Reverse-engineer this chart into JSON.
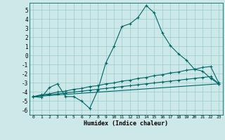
{
  "xlabel": "Humidex (Indice chaleur)",
  "bg_color": "#cce8e8",
  "grid_color": "#99cccc",
  "line_color": "#006666",
  "xlim": [
    -0.5,
    23.5
  ],
  "ylim": [
    -6.5,
    5.8
  ],
  "xticks": [
    0,
    1,
    2,
    3,
    4,
    5,
    6,
    7,
    8,
    9,
    10,
    11,
    12,
    13,
    14,
    15,
    16,
    17,
    18,
    19,
    20,
    21,
    22,
    23
  ],
  "yticks": [
    -6,
    -5,
    -4,
    -3,
    -2,
    -1,
    0,
    1,
    2,
    3,
    4,
    5
  ],
  "line1_x": [
    0,
    1,
    2,
    3,
    4,
    5,
    6,
    7,
    8,
    9,
    10,
    11,
    12,
    13,
    14,
    15,
    16,
    17,
    18,
    19,
    20,
    21,
    22,
    23
  ],
  "line1_y": [
    -4.5,
    -4.6,
    -3.5,
    -3.1,
    -4.5,
    -4.5,
    -5.0,
    -5.8,
    -3.8,
    -0.8,
    1.0,
    3.2,
    3.5,
    4.2,
    5.5,
    4.7,
    2.5,
    1.1,
    0.2,
    -0.5,
    -1.5,
    -1.7,
    -2.5,
    -3.1
  ],
  "line2_x": [
    0,
    1,
    2,
    3,
    4,
    5,
    6,
    7,
    8,
    9,
    10,
    11,
    12,
    13,
    14,
    15,
    16,
    17,
    18,
    19,
    20,
    21,
    22,
    23
  ],
  "line2_y": [
    -4.5,
    -4.3,
    -4.2,
    -4.0,
    -3.9,
    -3.7,
    -3.6,
    -3.4,
    -3.3,
    -3.1,
    -3.0,
    -2.8,
    -2.7,
    -2.5,
    -2.4,
    -2.2,
    -2.1,
    -1.9,
    -1.8,
    -1.6,
    -1.5,
    -1.3,
    -1.2,
    -3.0
  ],
  "line3_x": [
    0,
    1,
    2,
    3,
    4,
    5,
    6,
    7,
    8,
    9,
    10,
    11,
    12,
    13,
    14,
    15,
    16,
    17,
    18,
    19,
    20,
    21,
    22,
    23
  ],
  "line3_y": [
    -4.5,
    -4.4,
    -4.3,
    -4.2,
    -4.1,
    -4.0,
    -3.9,
    -3.8,
    -3.7,
    -3.6,
    -3.5,
    -3.4,
    -3.3,
    -3.2,
    -3.1,
    -3.0,
    -2.9,
    -2.8,
    -2.7,
    -2.6,
    -2.5,
    -2.4,
    -2.3,
    -3.1
  ],
  "line4_x": [
    0,
    23
  ],
  "line4_y": [
    -4.5,
    -3.1
  ]
}
